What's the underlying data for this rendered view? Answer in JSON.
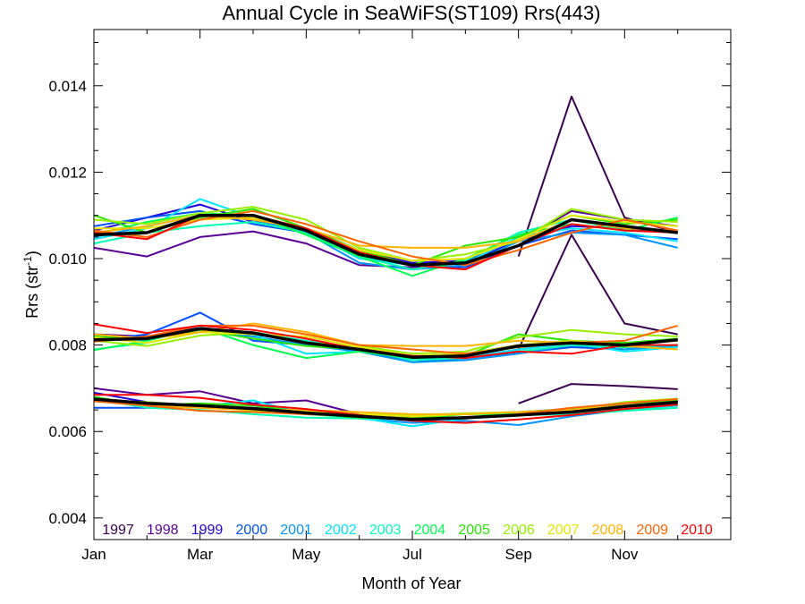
{
  "chart_data": {
    "type": "line",
    "title": "Annual Cycle in SeaWiFS(ST109) Rrs(443)",
    "xlabel": "Month of Year",
    "ylabel": "Rrs (str",
    "ylabel_sup": "-1",
    "ylabel_close": ")",
    "xlim": [
      1,
      13
    ],
    "ylim": [
      0.0035,
      0.0153
    ],
    "x_ticks": [
      {
        "value": 1,
        "label": "Jan"
      },
      {
        "value": 3,
        "label": "Mar"
      },
      {
        "value": 5,
        "label": "May"
      },
      {
        "value": 7,
        "label": "Jul"
      },
      {
        "value": 9,
        "label": "Sep"
      },
      {
        "value": 11,
        "label": "Nov"
      }
    ],
    "y_ticks": [
      {
        "value": 0.004,
        "label": "0.004"
      },
      {
        "value": 0.006,
        "label": "0.006"
      },
      {
        "value": 0.008,
        "label": "0.008"
      },
      {
        "value": 0.01,
        "label": "0.010"
      },
      {
        "value": 0.012,
        "label": "0.012"
      },
      {
        "value": 0.014,
        "label": "0.014"
      }
    ],
    "x": [
      1,
      2,
      3,
      4,
      5,
      6,
      7,
      8,
      9,
      10,
      11,
      12
    ],
    "groups": [
      "upper",
      "middle",
      "lower"
    ],
    "series": [
      {
        "name": "1997",
        "color": "#3c0050",
        "upper": [
          null,
          null,
          null,
          null,
          null,
          null,
          null,
          null,
          0.01005,
          0.01375,
          0.01095,
          0.0106
        ],
        "middle": [
          null,
          null,
          null,
          null,
          null,
          null,
          null,
          null,
          0.0079,
          0.01055,
          0.0085,
          0.00825
        ],
        "lower": [
          null,
          null,
          null,
          null,
          null,
          null,
          null,
          null,
          0.00665,
          0.0071,
          0.00705,
          0.00698
        ]
      },
      {
        "name": "1998",
        "color": "#5a0096",
        "upper": [
          0.01025,
          0.01005,
          0.0105,
          0.01063,
          0.01035,
          0.00985,
          0.0098,
          0.0099,
          0.0104,
          0.0111,
          0.0109,
          0.01075
        ],
        "middle": [
          0.00825,
          0.0082,
          0.00835,
          0.00825,
          0.0081,
          0.0079,
          0.00775,
          0.0078,
          0.008,
          0.00805,
          0.00795,
          0.008
        ],
        "lower": [
          0.007,
          0.00685,
          0.00693,
          0.00665,
          0.00672,
          0.0064,
          0.00635,
          0.0064,
          0.00645,
          0.00652,
          0.0066,
          0.0067
        ]
      },
      {
        "name": "1999",
        "color": "#2200dc",
        "upper": [
          0.01065,
          0.01095,
          0.01125,
          0.01085,
          0.0107,
          0.0102,
          0.0099,
          0.00995,
          0.0104,
          0.01075,
          0.0107,
          0.0106
        ],
        "middle": [
          0.00815,
          0.0082,
          0.0084,
          0.00825,
          0.00808,
          0.00785,
          0.0077,
          0.0077,
          0.0079,
          0.00805,
          0.00805,
          0.00812
        ],
        "lower": [
          0.0069,
          0.00668,
          0.0066,
          0.0065,
          0.0064,
          0.00635,
          0.0063,
          0.0063,
          0.0064,
          0.00645,
          0.00658,
          0.00668
        ]
      },
      {
        "name": "2000",
        "color": "#0050ff",
        "upper": [
          0.01075,
          0.01095,
          0.0111,
          0.0108,
          0.0106,
          0.01005,
          0.00985,
          0.0098,
          0.0103,
          0.01065,
          0.01055,
          0.01045
        ],
        "middle": [
          0.0081,
          0.00825,
          0.00875,
          0.0081,
          0.008,
          0.00785,
          0.00765,
          0.00765,
          0.00782,
          0.00795,
          0.0079,
          0.008
        ],
        "lower": [
          0.00655,
          0.00655,
          0.00658,
          0.00655,
          0.00645,
          0.00635,
          0.00625,
          0.0063,
          0.0064,
          0.00645,
          0.0065,
          0.00665
        ]
      },
      {
        "name": "2001",
        "color": "#0096ff",
        "upper": [
          0.0105,
          0.01075,
          0.011,
          0.0109,
          0.0106,
          0.0099,
          0.00975,
          0.00985,
          0.0104,
          0.0106,
          0.01055,
          0.01025
        ],
        "middle": [
          0.0082,
          0.00815,
          0.00835,
          0.0082,
          0.008,
          0.00785,
          0.0076,
          0.00765,
          0.0078,
          0.008,
          0.0079,
          0.00798
        ],
        "lower": [
          0.0067,
          0.0066,
          0.00655,
          0.0065,
          0.00645,
          0.0063,
          0.0062,
          0.00625,
          0.00615,
          0.00635,
          0.0065,
          0.0066
        ]
      },
      {
        "name": "2002",
        "color": "#00e6ff",
        "upper": [
          0.01045,
          0.0107,
          0.01138,
          0.01095,
          0.01065,
          0.01,
          0.00985,
          0.0099,
          0.0105,
          0.0107,
          0.0106,
          0.0104
        ],
        "middle": [
          0.0082,
          0.0081,
          0.0084,
          0.00825,
          0.0078,
          0.00785,
          0.0077,
          0.0077,
          0.0079,
          0.00805,
          0.00785,
          0.00795
        ],
        "lower": [
          0.0068,
          0.0066,
          0.00658,
          0.00672,
          0.0064,
          0.00632,
          0.00612,
          0.0063,
          0.0064,
          0.00645,
          0.0065,
          0.0066
        ]
      },
      {
        "name": "2003",
        "color": "#00ffb4",
        "upper": [
          0.01035,
          0.0106,
          0.01075,
          0.01085,
          0.0106,
          0.01005,
          0.00975,
          0.00995,
          0.0106,
          0.0109,
          0.01065,
          0.0106
        ],
        "middle": [
          0.0079,
          0.00805,
          0.0083,
          0.0083,
          0.0081,
          0.0079,
          0.00765,
          0.0077,
          0.00785,
          0.008,
          0.00795,
          0.008
        ],
        "lower": [
          0.00675,
          0.00655,
          0.0065,
          0.0064,
          0.00632,
          0.0063,
          0.00628,
          0.0063,
          0.00638,
          0.0064,
          0.00648,
          0.00655
        ]
      },
      {
        "name": "2004",
        "color": "#00ff50",
        "upper": [
          0.01055,
          0.01085,
          0.01105,
          0.011,
          0.01055,
          0.01005,
          0.0096,
          0.01,
          0.01055,
          0.0108,
          0.01065,
          0.01095
        ],
        "middle": [
          0.00788,
          0.0081,
          0.0084,
          0.008,
          0.0077,
          0.00785,
          0.0077,
          0.00775,
          0.008,
          0.0081,
          0.00795,
          0.00815
        ],
        "lower": [
          0.0067,
          0.00665,
          0.0066,
          0.00648,
          0.0064,
          0.00632,
          0.0063,
          0.0064,
          0.0064,
          0.00645,
          0.0066,
          0.0067
        ]
      },
      {
        "name": "2005",
        "color": "#28e600",
        "upper": [
          0.011,
          0.0106,
          0.01095,
          0.01115,
          0.0107,
          0.0102,
          0.00985,
          0.0103,
          0.0105,
          0.011,
          0.0108,
          0.0109
        ],
        "middle": [
          0.0082,
          0.00815,
          0.00835,
          0.00815,
          0.00798,
          0.0079,
          0.0077,
          0.00775,
          0.00825,
          0.0081,
          0.00805,
          0.00815
        ],
        "lower": [
          0.0068,
          0.0066,
          0.00665,
          0.0066,
          0.00645,
          0.00632,
          0.00632,
          0.0064,
          0.00645,
          0.00652,
          0.00665,
          0.00672
        ]
      },
      {
        "name": "2006",
        "color": "#96f000",
        "upper": [
          0.0109,
          0.0108,
          0.01105,
          0.0112,
          0.0109,
          0.01025,
          0.00995,
          0.0101,
          0.0104,
          0.01115,
          0.0109,
          0.01085
        ],
        "middle": [
          0.0081,
          0.00798,
          0.00822,
          0.0083,
          0.00805,
          0.00798,
          0.0078,
          0.00785,
          0.00818,
          0.00835,
          0.00825,
          0.0082
        ],
        "lower": [
          0.00672,
          0.00668,
          0.0066,
          0.00648,
          0.00642,
          0.0064,
          0.00638,
          0.00642,
          0.00645,
          0.0065,
          0.00668,
          0.00676
        ]
      },
      {
        "name": "2007",
        "color": "#e6e600",
        "upper": [
          0.0107,
          0.0107,
          0.0109,
          0.01095,
          0.01065,
          0.0102,
          0.00995,
          0.01,
          0.01045,
          0.011,
          0.01085,
          0.01075
        ],
        "middle": [
          0.00818,
          0.00805,
          0.0083,
          0.00825,
          0.0082,
          0.00795,
          0.00775,
          0.0078,
          0.008,
          0.0081,
          0.008,
          0.0081
        ],
        "lower": [
          0.00675,
          0.0066,
          0.00655,
          0.0065,
          0.00648,
          0.0064,
          0.00635,
          0.0064,
          0.00645,
          0.0065,
          0.0066,
          0.00668
        ]
      },
      {
        "name": "2008",
        "color": "#ffb400",
        "upper": [
          0.0106,
          0.01075,
          0.011,
          0.0109,
          0.0107,
          0.0103,
          0.01025,
          0.01025,
          0.0104,
          0.0109,
          0.0107,
          0.01065
        ],
        "middle": [
          0.00825,
          0.00815,
          0.0083,
          0.0085,
          0.0083,
          0.008,
          0.00798,
          0.00798,
          0.0081,
          0.00805,
          0.00798,
          0.0079
        ],
        "lower": [
          0.00675,
          0.0066,
          0.00655,
          0.0065,
          0.0065,
          0.00645,
          0.0064,
          0.0064,
          0.00645,
          0.0065,
          0.0066,
          0.00668
        ]
      },
      {
        "name": "2009",
        "color": "#ff6400",
        "upper": [
          0.01065,
          0.0105,
          0.0109,
          0.0111,
          0.0108,
          0.0104,
          0.01005,
          0.00985,
          0.0102,
          0.0106,
          0.0109,
          0.01065
        ],
        "middle": [
          0.00808,
          0.0082,
          0.00845,
          0.00845,
          0.00825,
          0.008,
          0.0079,
          0.0078,
          0.00795,
          0.00805,
          0.0081,
          0.00845
        ],
        "lower": [
          0.0067,
          0.0066,
          0.00648,
          0.00645,
          0.0064,
          0.00635,
          0.0063,
          0.0063,
          0.0064,
          0.00655,
          0.00665,
          0.00675
        ]
      },
      {
        "name": "2010",
        "color": "#ff0000",
        "upper": [
          0.0106,
          0.01045,
          0.011,
          0.011,
          0.0107,
          0.01015,
          0.00985,
          0.00975,
          0.0103,
          0.0108,
          0.01065,
          0.0106
        ],
        "middle": [
          0.00848,
          0.00828,
          0.00845,
          0.00835,
          0.00815,
          0.0079,
          0.00775,
          0.0077,
          0.00785,
          0.0078,
          0.008,
          0.008
        ],
        "lower": [
          0.00685,
          0.00685,
          0.00678,
          0.00662,
          0.00652,
          0.00638,
          0.00625,
          0.0062,
          0.00628,
          0.00638,
          0.00652,
          0.00662
        ]
      }
    ],
    "mean_series": {
      "color": "#000000",
      "upper": [
        0.01055,
        0.0106,
        0.011,
        0.011,
        0.01065,
        0.0101,
        0.00985,
        0.0099,
        0.0103,
        0.0109,
        0.01075,
        0.0106
      ],
      "middle": [
        0.00812,
        0.00815,
        0.00838,
        0.00828,
        0.00805,
        0.0079,
        0.00772,
        0.00775,
        0.00798,
        0.00805,
        0.008,
        0.00812
      ],
      "lower": [
        0.00675,
        0.00665,
        0.0066,
        0.00653,
        0.00643,
        0.00635,
        0.00628,
        0.00632,
        0.00638,
        0.00645,
        0.00658,
        0.00668
      ]
    },
    "legend_placement": "bottom-inside"
  }
}
